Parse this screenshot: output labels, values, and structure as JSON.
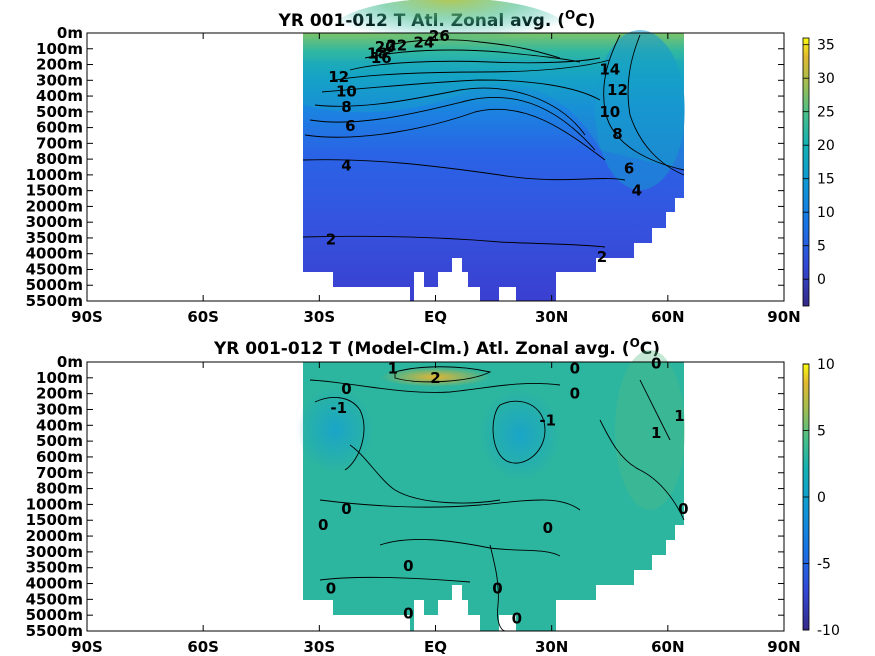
{
  "chart_data": [
    {
      "type": "heatmap",
      "title_prefix": "YR 001-012 T Atl. Zonal avg. (",
      "title_sup": "O",
      "title_suffix": "C)",
      "x_ticks": [
        "90S",
        "60S",
        "30S",
        "EQ",
        "30N",
        "60N",
        "90N"
      ],
      "x_tick_values": [
        -90,
        -60,
        -30,
        0,
        30,
        60,
        90
      ],
      "y_ticks": [
        "0m",
        "100m",
        "200m",
        "300m",
        "400m",
        "500m",
        "600m",
        "700m",
        "800m",
        "1000m",
        "1500m",
        "2000m",
        "3000m",
        "3500m",
        "4000m",
        "4500m",
        "5000m",
        "5500m"
      ],
      "xlim": [
        -90,
        90
      ],
      "colorbar": {
        "ticks": [
          "0",
          "5",
          "10",
          "15",
          "20",
          "25",
          "30",
          "35"
        ],
        "tick_values": [
          0,
          5,
          10,
          15,
          20,
          25,
          30,
          35
        ],
        "range": [
          -4,
          36
        ]
      },
      "contour_labels": [
        {
          "text": "26",
          "lat": 1,
          "depth_index": 0.2
        },
        {
          "text": "24",
          "lat": -3,
          "depth_index": 0.6
        },
        {
          "text": "22",
          "lat": -10,
          "depth_index": 0.8
        },
        {
          "text": "20",
          "lat": -13,
          "depth_index": 0.9
        },
        {
          "text": "18",
          "lat": -15,
          "depth_index": 1.3
        },
        {
          "text": "16",
          "lat": -14,
          "depth_index": 1.6
        },
        {
          "text": "14",
          "lat": 45,
          "depth_index": 2.3
        },
        {
          "text": "12",
          "lat": -25,
          "depth_index": 2.8
        },
        {
          "text": "12",
          "lat": 47,
          "depth_index": 3.6
        },
        {
          "text": "10",
          "lat": -23,
          "depth_index": 3.7
        },
        {
          "text": "10",
          "lat": 45,
          "depth_index": 5.0
        },
        {
          "text": "8",
          "lat": -23,
          "depth_index": 4.7
        },
        {
          "text": "8",
          "lat": 47,
          "depth_index": 6.4
        },
        {
          "text": "6",
          "lat": -22,
          "depth_index": 5.9
        },
        {
          "text": "6",
          "lat": 50,
          "depth_index": 8.6
        },
        {
          "text": "4",
          "lat": -23,
          "depth_index": 8.4
        },
        {
          "text": "4",
          "lat": 52,
          "depth_index": 10.0
        },
        {
          "text": "2",
          "lat": -27,
          "depth_index": 13.1
        },
        {
          "text": "2",
          "lat": 43,
          "depth_index": 14.2
        }
      ]
    },
    {
      "type": "heatmap",
      "title_prefix": "YR 001-012 T (Model-Clm.) Atl. Zonal avg. (",
      "title_sup": "O",
      "title_suffix": "C)",
      "x_ticks": [
        "90S",
        "60S",
        "30S",
        "EQ",
        "30N",
        "60N",
        "90N"
      ],
      "x_tick_values": [
        -90,
        -60,
        -30,
        0,
        30,
        60,
        90
      ],
      "y_ticks": [
        "0m",
        "100m",
        "200m",
        "300m",
        "400m",
        "500m",
        "600m",
        "700m",
        "800m",
        "1000m",
        "1500m",
        "2000m",
        "3000m",
        "3500m",
        "4000m",
        "4500m",
        "5000m",
        "5500m"
      ],
      "xlim": [
        -90,
        90
      ],
      "colorbar": {
        "ticks": [
          "-10",
          "-5",
          "0",
          "5",
          "10"
        ],
        "tick_values": [
          -10,
          -5,
          0,
          5,
          10
        ],
        "range": [
          -10,
          10
        ]
      },
      "contour_labels": [
        {
          "text": "1",
          "lat": -11,
          "depth_index": 0.4
        },
        {
          "text": "2",
          "lat": 0,
          "depth_index": 1.0
        },
        {
          "text": "0",
          "lat": -23,
          "depth_index": 1.7
        },
        {
          "text": "-1",
          "lat": -25,
          "depth_index": 2.9
        },
        {
          "text": "0",
          "lat": 36,
          "depth_index": 0.4
        },
        {
          "text": "0",
          "lat": 36,
          "depth_index": 2.0
        },
        {
          "text": "-1",
          "lat": 29,
          "depth_index": 3.7
        },
        {
          "text": "0",
          "lat": 57,
          "depth_index": 0.1
        },
        {
          "text": "1",
          "lat": 63,
          "depth_index": 3.4
        },
        {
          "text": "1",
          "lat": 57,
          "depth_index": 4.5
        },
        {
          "text": "0",
          "lat": -23,
          "depth_index": 9.3
        },
        {
          "text": "0",
          "lat": -29,
          "depth_index": 10.3
        },
        {
          "text": "0",
          "lat": 29,
          "depth_index": 10.5
        },
        {
          "text": "0",
          "lat": 64,
          "depth_index": 9.3
        },
        {
          "text": "0",
          "lat": -7,
          "depth_index": 12.9
        },
        {
          "text": "0",
          "lat": -27,
          "depth_index": 14.3
        },
        {
          "text": "0",
          "lat": 16,
          "depth_index": 14.3
        },
        {
          "text": "0",
          "lat": -7,
          "depth_index": 15.9
        },
        {
          "text": "0",
          "lat": 21,
          "depth_index": 16.2
        }
      ]
    }
  ]
}
